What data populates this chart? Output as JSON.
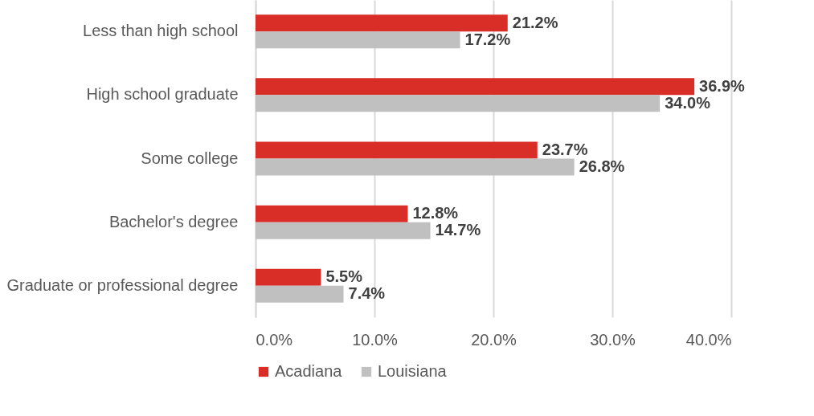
{
  "chart_data": {
    "type": "bar",
    "orientation": "horizontal",
    "categories": [
      "Less than high school",
      "High school graduate",
      "Some college",
      "Bachelor's degree",
      "Graduate or professional degree"
    ],
    "series": [
      {
        "name": "Acadiana",
        "color": "#d92d27",
        "values": [
          21.2,
          36.9,
          23.7,
          12.8,
          5.5
        ],
        "value_labels": [
          "21.2%",
          "36.9%",
          "23.7%",
          "12.8%",
          "5.5%"
        ]
      },
      {
        "name": "Louisiana",
        "color": "#c0c0c0",
        "values": [
          17.2,
          34.0,
          26.8,
          14.7,
          7.4
        ],
        "value_labels": [
          "17.2%",
          "34.0%",
          "26.8%",
          "14.7%",
          "7.4%"
        ]
      }
    ],
    "xlim": [
      0,
      40
    ],
    "xticks": [
      {
        "value": 0,
        "label": "0.0%"
      },
      {
        "value": 10,
        "label": "10.0%"
      },
      {
        "value": 20,
        "label": "20.0%"
      },
      {
        "value": 30,
        "label": "30.0%"
      },
      {
        "value": 40,
        "label": "40.0%"
      }
    ],
    "grid": "x",
    "legend": "bottom"
  }
}
